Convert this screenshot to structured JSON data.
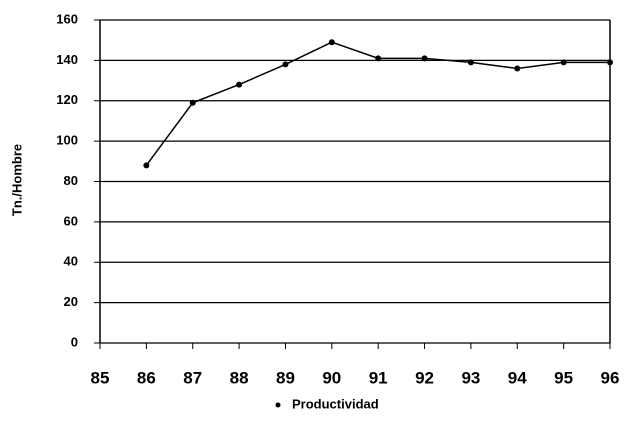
{
  "chart_data": {
    "type": "line",
    "y_label": "Tn./Hombre",
    "x": [
      86,
      87,
      88,
      89,
      90,
      91,
      92,
      93,
      94,
      95,
      96
    ],
    "series": [
      {
        "name": "Productividad",
        "color": "#000000",
        "values": [
          88,
          119,
          128,
          138,
          149,
          141,
          141,
          139,
          136,
          139,
          139
        ]
      }
    ],
    "xlim": [
      85,
      96
    ],
    "xticks": [
      85,
      86,
      87,
      88,
      89,
      90,
      91,
      92,
      93,
      94,
      95,
      96
    ],
    "ylim": [
      0,
      160
    ],
    "yticks": [
      0,
      20,
      40,
      60,
      80,
      100,
      120,
      140,
      160
    ],
    "grid": true,
    "legend": "bottom"
  }
}
